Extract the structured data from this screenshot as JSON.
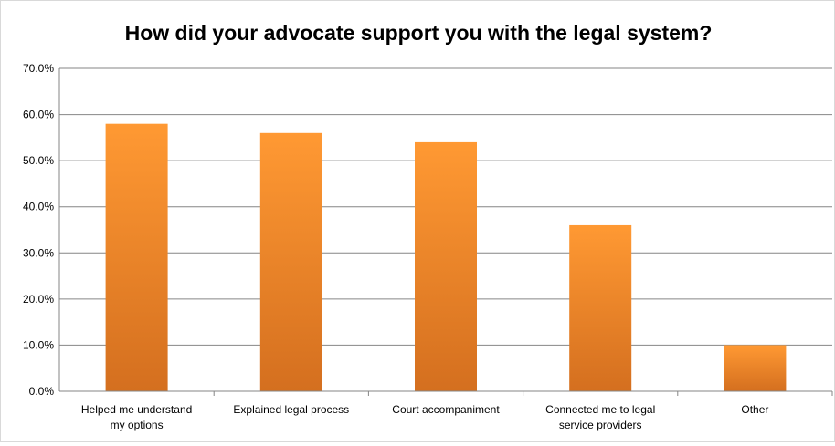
{
  "chart_data": {
    "type": "bar",
    "title": "How did your advocate support you with the legal system?",
    "xlabel": "",
    "ylabel": "",
    "ylim": [
      0,
      70
    ],
    "y_ticks": [
      "0.0%",
      "10.0%",
      "20.0%",
      "30.0%",
      "40.0%",
      "50.0%",
      "60.0%",
      "70.0%"
    ],
    "grid": true,
    "legend": "none",
    "categories": [
      [
        "Helped me understand",
        "my options"
      ],
      [
        "Explained legal process"
      ],
      [
        "Court accompaniment"
      ],
      [
        "Connected me to legal",
        "service providers"
      ],
      [
        "Other"
      ]
    ],
    "values": [
      58,
      56,
      54,
      36,
      10
    ],
    "colors": {
      "bar_top": "#ff9933",
      "bar_bottom": "#d46f1f",
      "grid": "#868686",
      "axis": "#868686"
    }
  }
}
